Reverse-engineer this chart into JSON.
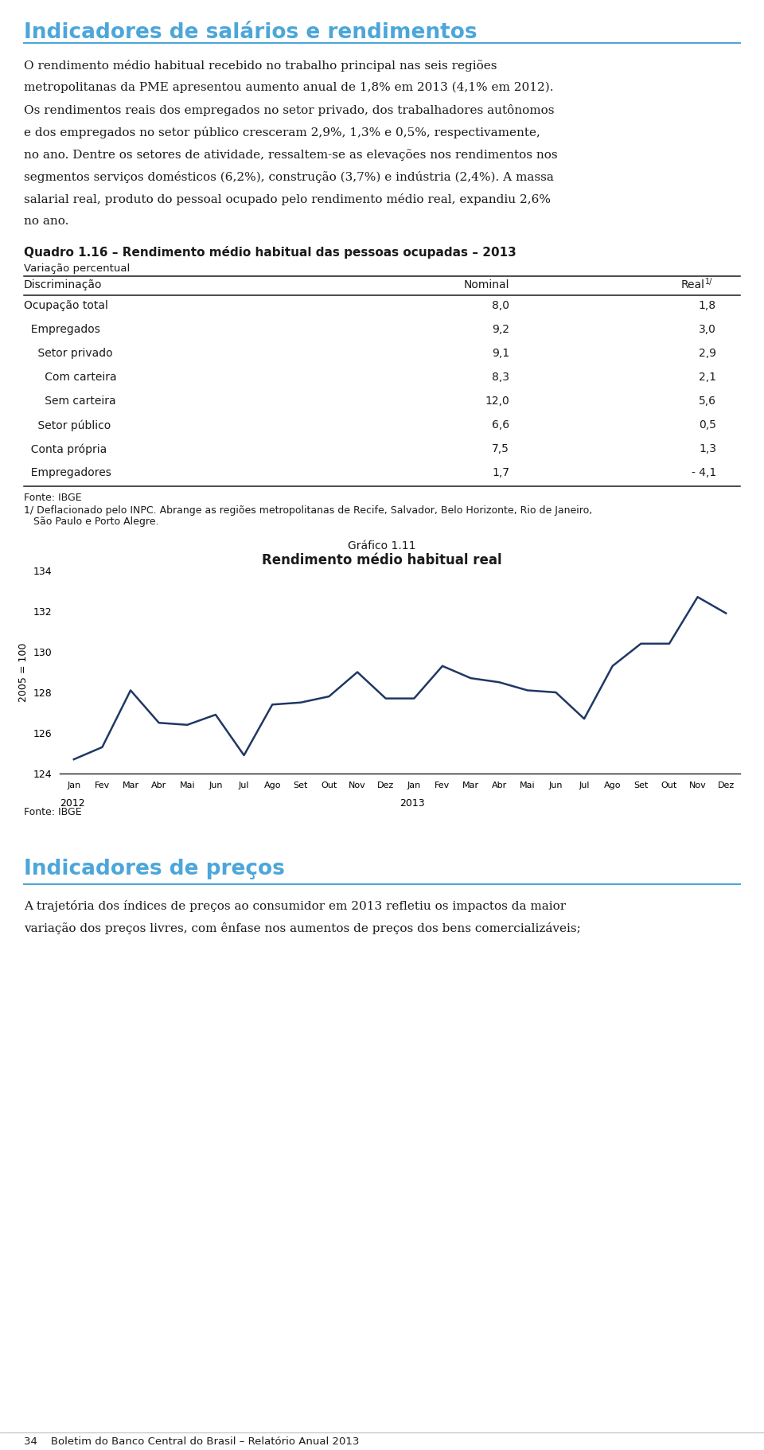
{
  "page_bg": "#ffffff",
  "header_title": "Indicadores de salários e rendimentos",
  "header_color": "#4da6d9",
  "para_lines": [
    "O rendimento médio habitual recebido no trabalho principal nas seis regiões",
    "metropolitanas da PME apresentou aumento anual de 1,8% em 2013 (4,1% em 2012).",
    "Os rendimentos reais dos empregados no setor privado, dos trabalhadores autônomos",
    "e dos empregados no setor público cresceram 2,9%, 1,3% e 0,5%, respectivamente,",
    "no ano. Dentre os setores de atividade, ressaltem-se as elevações nos rendimentos nos",
    "segmentos serviços domésticos (6,2%), construção (3,7%) e indústria (2,4%). A massa",
    "salarial real, produto do pessoal ocupado pelo rendimento médio real, expandiu 2,6%",
    "no ano."
  ],
  "quadro_title": "Quadro 1.16 – Rendimento médio habitual das pessoas ocupadas – 2013",
  "quadro_subtitle": "Variação percentual",
  "table_col0_header": "Discriminação",
  "table_col1_header": "Nominal",
  "table_col2_header_main": "Real",
  "table_col2_header_super": "1/",
  "table_rows": [
    [
      "Ocupação total",
      "8,0",
      "1,8"
    ],
    [
      "  Empregados",
      "9,2",
      "3,0"
    ],
    [
      "    Setor privado",
      "9,1",
      "2,9"
    ],
    [
      "      Com carteira",
      "8,3",
      "2,1"
    ],
    [
      "      Sem carteira",
      "12,0",
      "5,6"
    ],
    [
      "    Setor público",
      "6,6",
      "0,5"
    ],
    [
      "  Conta própria",
      "7,5",
      "1,3"
    ],
    [
      "  Empregadores",
      "1,7",
      "- 4,1"
    ]
  ],
  "fonte_table": "Fonte: IBGE",
  "footnote1": "1/ Deflacionado pelo INPC. Abrange as regiões metropolitanas de Recife, Salvador, Belo Horizonte, Rio de Janeiro,",
  "footnote2": "   São Paulo e Porto Alegre.",
  "grafico_super": "Gráfico 1.11",
  "grafico_title": "Rendimento médio habitual real",
  "ylabel": "2005 = 100",
  "ylim": [
    124,
    134
  ],
  "yticks": [
    124,
    126,
    128,
    130,
    132,
    134
  ],
  "x_labels": [
    "Jan",
    "Fev",
    "Mar",
    "Abr",
    "Mai",
    "Jun",
    "Jul",
    "Ago",
    "Set",
    "Out",
    "Nov",
    "Dez",
    "Jan",
    "Fev",
    "Mar",
    "Abr",
    "Mai",
    "Jun",
    "Jul",
    "Ago",
    "Set",
    "Out",
    "Nov",
    "Dez"
  ],
  "line_color": "#1f3864",
  "line_data": [
    124.7,
    125.3,
    128.1,
    126.5,
    126.4,
    126.9,
    124.9,
    127.4,
    127.5,
    127.8,
    129.0,
    127.7,
    127.7,
    129.3,
    128.7,
    128.5,
    128.1,
    128.0,
    126.7,
    129.3,
    130.4,
    130.4,
    132.7,
    131.9
  ],
  "fonte_grafico": "Fonte: IBGE",
  "footer_text": "34    Boletim do Banco Central do Brasil – Relatório Anual 2013",
  "section2_title": "Indicadores de preços",
  "section2_lines": [
    "A trajetória dos índices de preços ao consumidor em 2013 refletiu os impactos da maior",
    "variação dos preços livres, com ênfase nos aumentos de preços dos bens comercializáveis;"
  ]
}
